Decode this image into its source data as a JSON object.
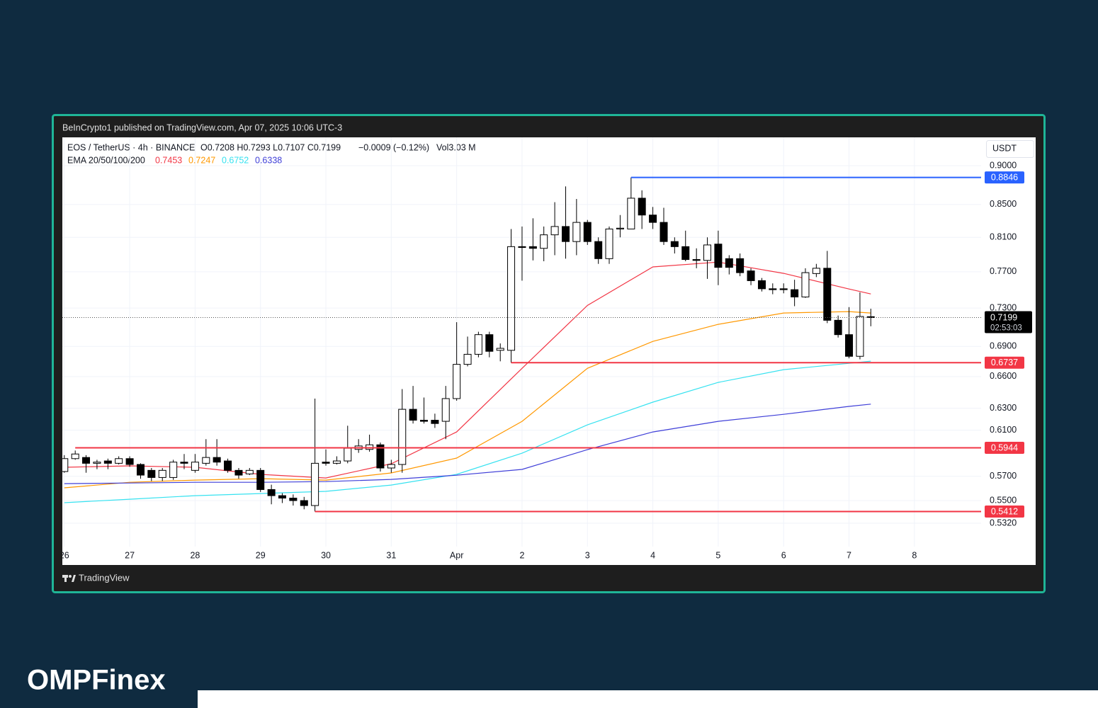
{
  "header": {
    "published": "BeInCrypto1 published on TradingView.com, Apr 07, 2025 10:06 UTC-3",
    "brand": "TradingView"
  },
  "logo": "OMPFinex",
  "chart_data": {
    "type": "candlestick",
    "title": "EOS / TetherUS · 4h · BINANCE",
    "quote": "O0.7208 H0.7293 L0.7107 C0.7199",
    "change": "−0.0009 (−0.12%)",
    "volume": "Vol3.03 M",
    "indicator": "EMA 20/50/100/200",
    "currency": "USDT",
    "countdown": "02:53:03",
    "log": true,
    "grid": true,
    "up_color": "#ffffff",
    "down_color": "#000000",
    "x": [
      0,
      0.167,
      0.333,
      0.5,
      0.667,
      0.833,
      1,
      1.167,
      1.333,
      1.5,
      1.667,
      1.833,
      2,
      2.167,
      2.333,
      2.5,
      2.667,
      2.833,
      3,
      3.167,
      3.333,
      3.5,
      3.667,
      3.833,
      4,
      4.167,
      4.333,
      4.5,
      4.667,
      4.833,
      5,
      5.167,
      5.333,
      5.5,
      5.667,
      5.833,
      6,
      6.167,
      6.333,
      6.5,
      6.667,
      6.833,
      7,
      7.167,
      7.333,
      7.5,
      7.667,
      7.833,
      8,
      8.167,
      8.333,
      8.5,
      8.667,
      8.833,
      9,
      9.167,
      9.333,
      9.5,
      9.667,
      9.833,
      10,
      10.167,
      10.333,
      10.5,
      10.667,
      10.833,
      11,
      11.167,
      11.333,
      11.5,
      11.667,
      11.833,
      12,
      12.167,
      12.333
    ],
    "open": [
      0.574,
      0.585,
      0.586,
      0.581,
      0.583,
      0.581,
      0.585,
      0.58,
      0.575,
      0.569,
      0.569,
      0.582,
      0.575,
      0.581,
      0.586,
      0.583,
      0.575,
      0.572,
      0.575,
      0.559,
      0.554,
      0.552,
      0.55,
      0.546,
      0.582,
      0.581,
      0.583,
      0.593,
      0.593,
      0.597,
      0.577,
      0.58,
      0.629,
      0.619,
      0.619,
      0.618,
      0.639,
      0.672,
      0.682,
      0.702,
      0.686,
      0.686,
      0.799,
      0.799,
      0.797,
      0.813,
      0.823,
      0.805,
      0.828,
      0.805,
      0.785,
      0.82,
      0.82,
      0.858,
      0.837,
      0.828,
      0.805,
      0.799,
      0.784,
      0.783,
      0.802,
      0.785,
      0.785,
      0.771,
      0.76,
      0.751,
      0.751,
      0.75,
      0.742,
      0.768,
      0.774,
      0.717,
      0.702,
      0.68,
      0.7208
    ],
    "high": [
      0.588,
      0.592,
      0.588,
      0.584,
      0.585,
      0.587,
      0.587,
      0.581,
      0.577,
      0.577,
      0.584,
      0.589,
      0.589,
      0.602,
      0.602,
      0.585,
      0.577,
      0.577,
      0.577,
      0.563,
      0.556,
      0.555,
      0.553,
      0.639,
      0.593,
      0.587,
      0.614,
      0.602,
      0.606,
      0.599,
      0.584,
      0.648,
      0.651,
      0.64,
      0.625,
      0.651,
      0.715,
      0.7,
      0.705,
      0.705,
      0.693,
      0.82,
      0.823,
      0.833,
      0.823,
      0.853,
      0.873,
      0.857,
      0.831,
      0.81,
      0.823,
      0.837,
      0.8846,
      0.868,
      0.847,
      0.846,
      0.81,
      0.818,
      0.797,
      0.81,
      0.818,
      0.789,
      0.791,
      0.774,
      0.763,
      0.757,
      0.757,
      0.761,
      0.774,
      0.779,
      0.794,
      0.722,
      0.731,
      0.747,
      0.7293
    ],
    "low": [
      0.573,
      0.584,
      0.573,
      0.576,
      0.576,
      0.58,
      0.578,
      0.568,
      0.566,
      0.566,
      0.567,
      0.576,
      0.573,
      0.579,
      0.579,
      0.573,
      0.568,
      0.571,
      0.557,
      0.547,
      0.548,
      0.546,
      0.543,
      0.5412,
      0.579,
      0.58,
      0.581,
      0.59,
      0.591,
      0.574,
      0.573,
      0.573,
      0.616,
      0.616,
      0.612,
      0.602,
      0.637,
      0.67,
      0.679,
      0.679,
      0.675,
      0.6737,
      0.76,
      0.783,
      0.782,
      0.789,
      0.785,
      0.789,
      0.801,
      0.779,
      0.779,
      0.81,
      0.82,
      0.82,
      0.82,
      0.801,
      0.791,
      0.782,
      0.774,
      0.762,
      0.755,
      0.767,
      0.765,
      0.755,
      0.748,
      0.745,
      0.746,
      0.732,
      0.741,
      0.764,
      0.714,
      0.699,
      0.678,
      0.677,
      0.7107
    ],
    "close": [
      0.585,
      0.589,
      0.581,
      0.582,
      0.581,
      0.585,
      0.58,
      0.571,
      0.569,
      0.575,
      0.582,
      0.581,
      0.582,
      0.586,
      0.582,
      0.575,
      0.571,
      0.575,
      0.559,
      0.554,
      0.552,
      0.55,
      0.546,
      0.581,
      0.581,
      0.583,
      0.594,
      0.596,
      0.597,
      0.577,
      0.58,
      0.629,
      0.619,
      0.618,
      0.616,
      0.639,
      0.672,
      0.682,
      0.702,
      0.685,
      0.688,
      0.799,
      0.798,
      0.797,
      0.813,
      0.823,
      0.805,
      0.828,
      0.805,
      0.785,
      0.82,
      0.821,
      0.858,
      0.837,
      0.828,
      0.805,
      0.799,
      0.784,
      0.783,
      0.801,
      0.775,
      0.775,
      0.769,
      0.76,
      0.751,
      0.75,
      0.75,
      0.742,
      0.769,
      0.774,
      0.717,
      0.702,
      0.68,
      0.721,
      0.7199
    ],
    "series": [
      {
        "color": "#f23645",
        "x": [
          0,
          1,
          2,
          3,
          4,
          5,
          6,
          7,
          8,
          9,
          10,
          11,
          12,
          12.333
        ],
        "values": [
          0.5776,
          0.5788,
          0.5776,
          0.5716,
          0.5686,
          0.5806,
          0.6084,
          0.6681,
          0.7329,
          0.7755,
          0.781,
          0.7682,
          0.7507,
          0.7453
        ]
      },
      {
        "color": "#ff9800",
        "x": [
          0,
          1,
          2,
          3,
          4,
          5,
          6,
          7,
          8,
          9,
          10,
          11,
          12,
          12.333
        ],
        "values": [
          0.5604,
          0.565,
          0.5668,
          0.568,
          0.5668,
          0.5728,
          0.5855,
          0.618,
          0.6681,
          0.6951,
          0.7127,
          0.7247,
          0.7262,
          0.7247
        ]
      },
      {
        "color": "#36e2f0",
        "x": [
          0,
          1,
          2,
          3,
          4,
          5,
          6,
          7,
          8,
          9,
          10,
          11,
          12,
          12.333
        ],
        "values": [
          0.5483,
          0.5511,
          0.554,
          0.5557,
          0.5575,
          0.5627,
          0.5716,
          0.5897,
          0.6148,
          0.6357,
          0.6544,
          0.6668,
          0.673,
          0.6752
        ]
      },
      {
        "color": "#3f3fd8",
        "x": [
          0,
          1,
          2,
          3,
          4,
          5,
          6,
          7,
          8,
          9,
          10,
          11,
          12,
          12.333
        ],
        "values": [
          0.5639,
          0.5644,
          0.565,
          0.565,
          0.5656,
          0.5674,
          0.5709,
          0.5758,
          0.5928,
          0.6084,
          0.618,
          0.6244,
          0.6317,
          0.6338
        ]
      }
    ],
    "levels": [
      {
        "value": 0.8846,
        "color": "#2962ff",
        "from": 8.667
      },
      {
        "value": 0.6737,
        "color": "#f23645",
        "from": 6.833
      },
      {
        "value": 0.5944,
        "color": "#f23645",
        "from": 0.167
      },
      {
        "value": 0.5412,
        "color": "#f23645",
        "from": 3.833
      }
    ],
    "xlim": [
      -0.03,
      14.02
    ],
    "xticks": [
      {
        "value": 0,
        "label": "26"
      },
      {
        "value": 1,
        "label": "27"
      },
      {
        "value": 2,
        "label": "28"
      },
      {
        "value": 3,
        "label": "29"
      },
      {
        "value": 4,
        "label": "30"
      },
      {
        "value": 5,
        "label": "31"
      },
      {
        "value": 6,
        "label": "Apr"
      },
      {
        "value": 7,
        "label": "2"
      },
      {
        "value": 8,
        "label": "3"
      },
      {
        "value": 9,
        "label": "4"
      },
      {
        "value": 10,
        "label": "5"
      },
      {
        "value": 11,
        "label": "6"
      },
      {
        "value": 12,
        "label": "7"
      },
      {
        "value": 13,
        "label": "8"
      }
    ],
    "ylim": [
      0.5003,
      0.9383
    ],
    "yticks": [
      {
        "value": 0.9,
        "label": "0.9000"
      },
      {
        "value": 0.85,
        "label": "0.8500"
      },
      {
        "value": 0.81,
        "label": "0.8100"
      },
      {
        "value": 0.77,
        "label": "0.7700"
      },
      {
        "value": 0.73,
        "label": "0.7300"
      },
      {
        "value": 0.69,
        "label": "0.6900"
      },
      {
        "value": 0.66,
        "label": "0.6600"
      },
      {
        "value": 0.63,
        "label": "0.6300"
      },
      {
        "value": 0.61,
        "label": "0.6100"
      },
      {
        "value": 0.57,
        "label": "0.5700"
      },
      {
        "value": 0.55,
        "label": "0.5500"
      },
      {
        "value": 0.532,
        "label": "0.5320"
      }
    ]
  }
}
